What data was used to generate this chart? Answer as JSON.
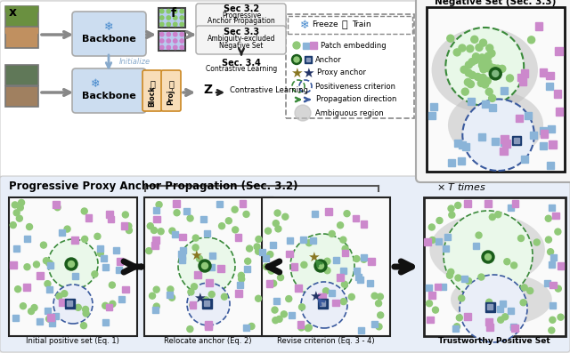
{
  "green_dot": "#90c978",
  "blue_sq": "#8ab4d8",
  "pink_dia": "#cc88cc",
  "anchor_green": "#1a5c1a",
  "anchor_blue": "#1a3a6e",
  "circle_green_edge": "#3a8a3a",
  "circle_blue_edge": "#3a5a9e",
  "gray_amb": "#b8b8b8",
  "backbone_bg": "#ccddf0",
  "block_bg": "#f8ddb8",
  "sec_box_bg": "#f0f0f0",
  "sec_box_edge": "#999999",
  "top_panel_bg": "#ffffff",
  "bot_panel_bg": "#e8eef8",
  "freeze_color": "#4488cc",
  "train_color": "#ee6600",
  "sub_labels": [
    "Initial positive set (Eq. 1)",
    "Relocate anchor (Eq. 2)",
    "Revise criterion (Eq. 3 - 4)",
    "Trustworthy Positive Set"
  ],
  "times_text": "× T times",
  "bottom_title": "Progressive Proxy Anchor Propagation (Sec. 3.2)"
}
